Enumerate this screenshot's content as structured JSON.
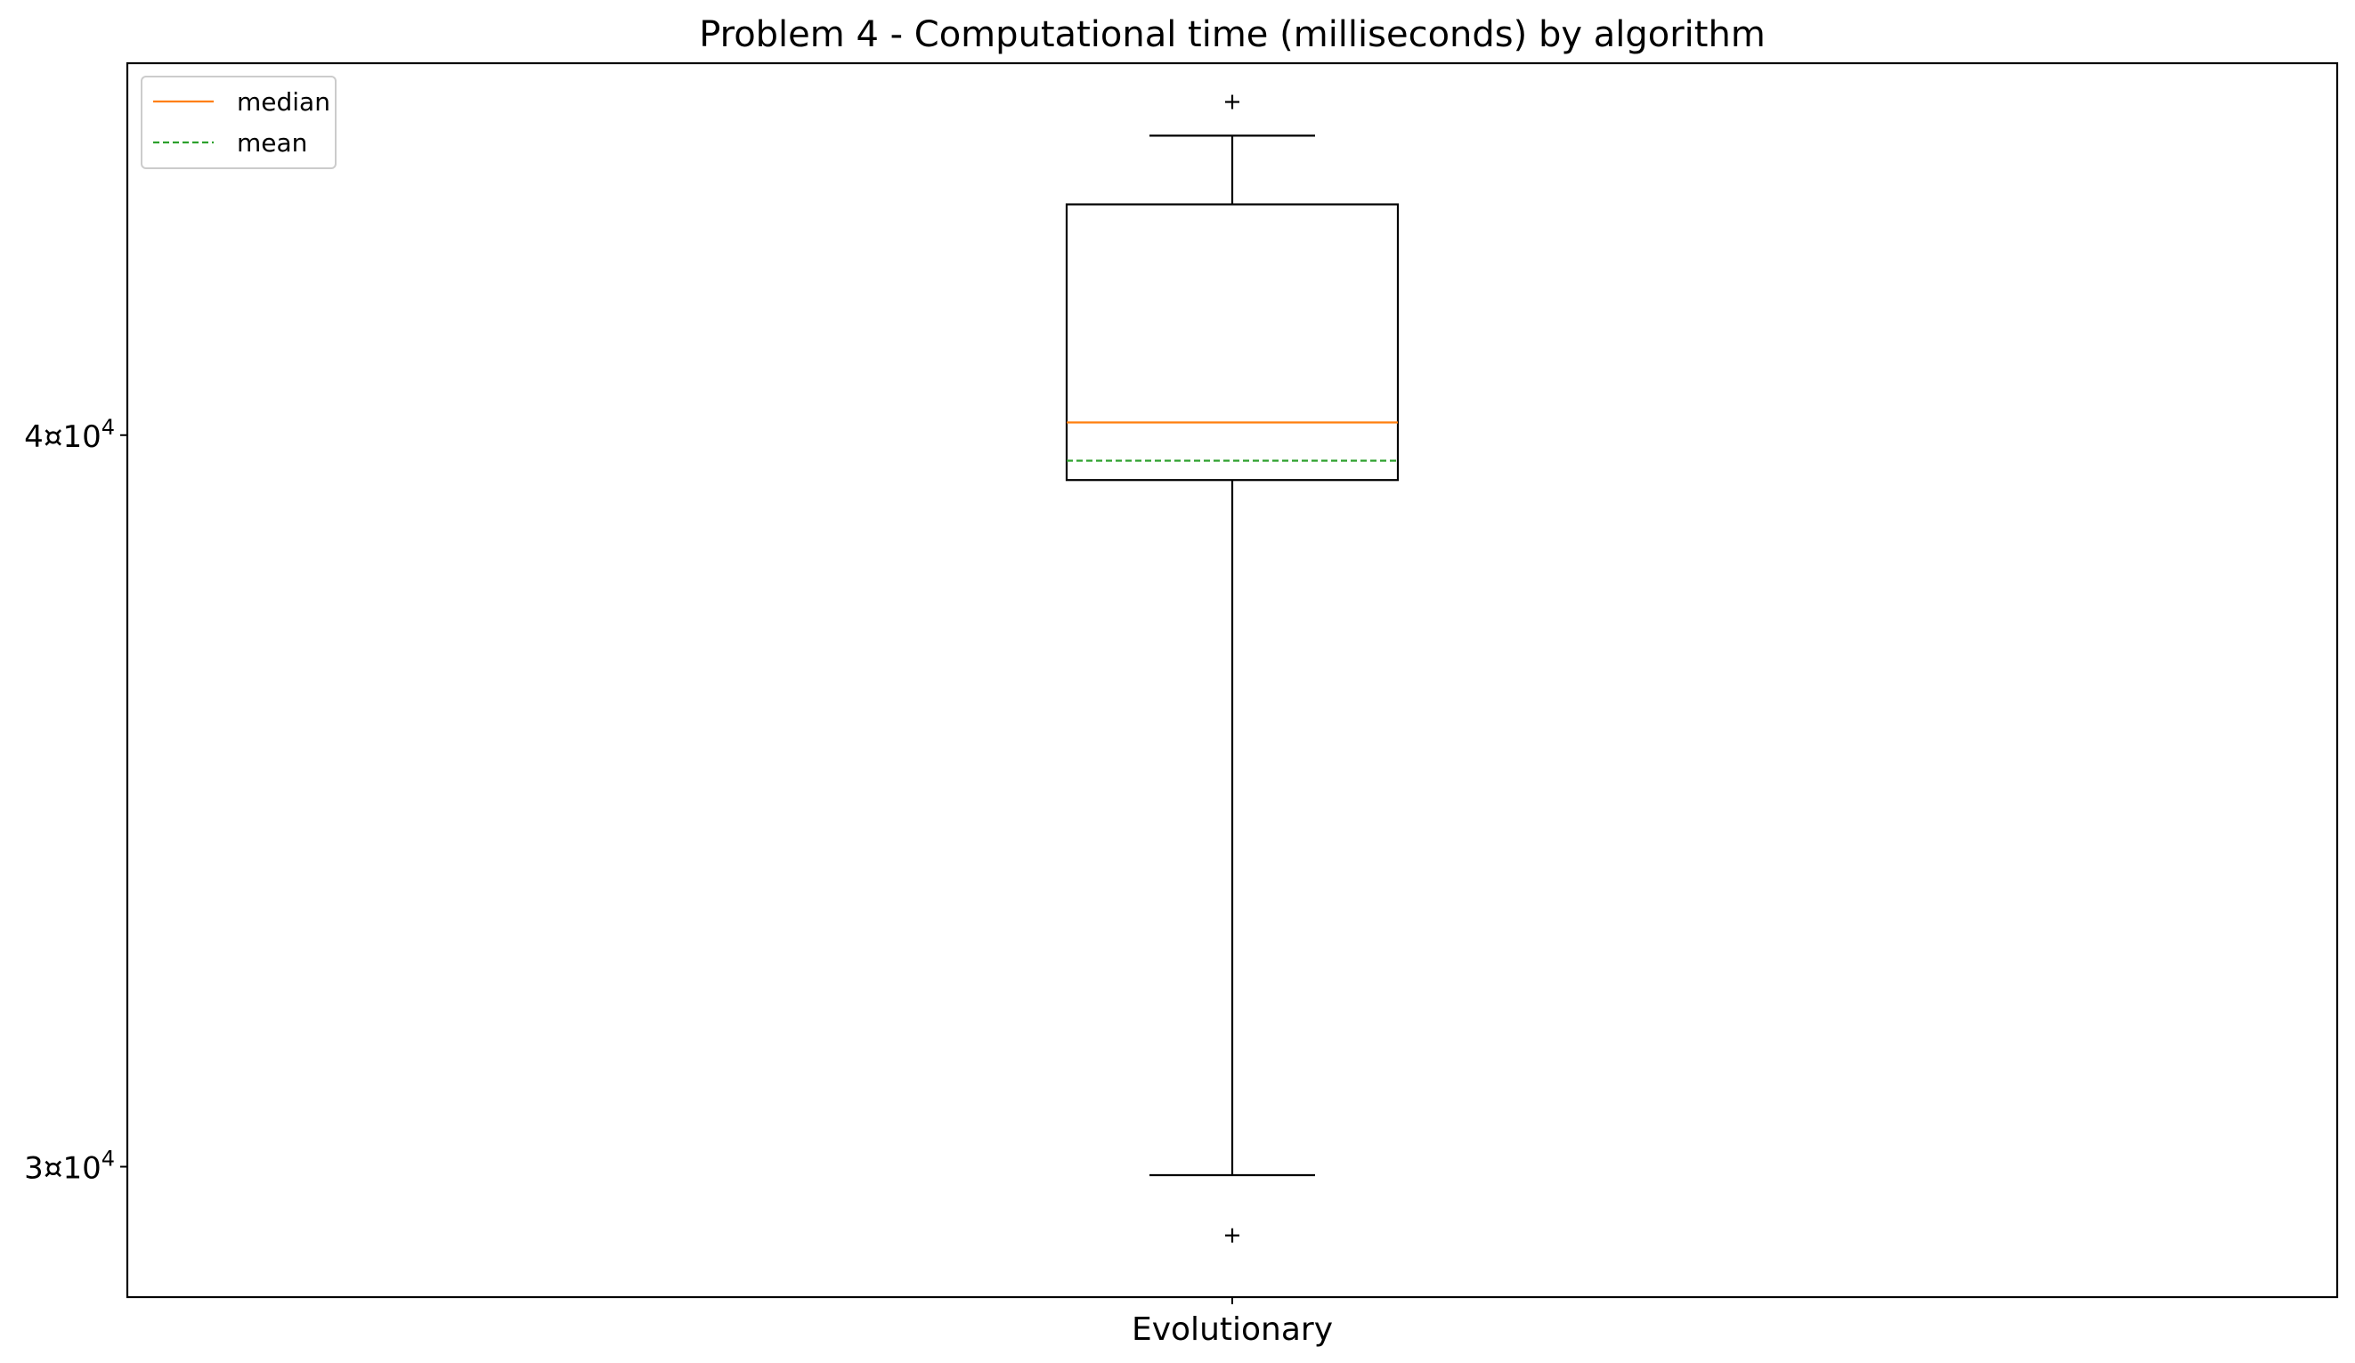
{
  "chart_data": {
    "type": "box",
    "title": "Problem 4 - Computational time (milliseconds) by algorithm",
    "xlabel": "",
    "ylabel": "",
    "y_scale": "log",
    "ylim": [
      28500,
      46300
    ],
    "y_ticks": [
      {
        "value": 30000,
        "mantissa": "3",
        "exponent": "4"
      },
      {
        "value": 40000,
        "mantissa": "4",
        "exponent": "4"
      }
    ],
    "tick_mult_glyph": "¤",
    "tick_base": "10",
    "categories": [
      "Evolutionary"
    ],
    "boxes": [
      {
        "category": "Evolutionary",
        "whisker_low": 29900,
        "q1": 39300,
        "median": 40200,
        "mean": 39600,
        "q3": 43800,
        "whisker_high": 45000,
        "outliers": [
          29200,
          45600
        ]
      }
    ],
    "legend": {
      "position": "upper-left",
      "entries": [
        {
          "label": "median",
          "color": "#ff7f0e",
          "style": "solid"
        },
        {
          "label": "mean",
          "color": "#2ca02c",
          "style": "dashed"
        }
      ]
    },
    "grid": false,
    "colors": {
      "box": "#000000",
      "median": "#ff7f0e",
      "mean": "#2ca02c"
    }
  }
}
